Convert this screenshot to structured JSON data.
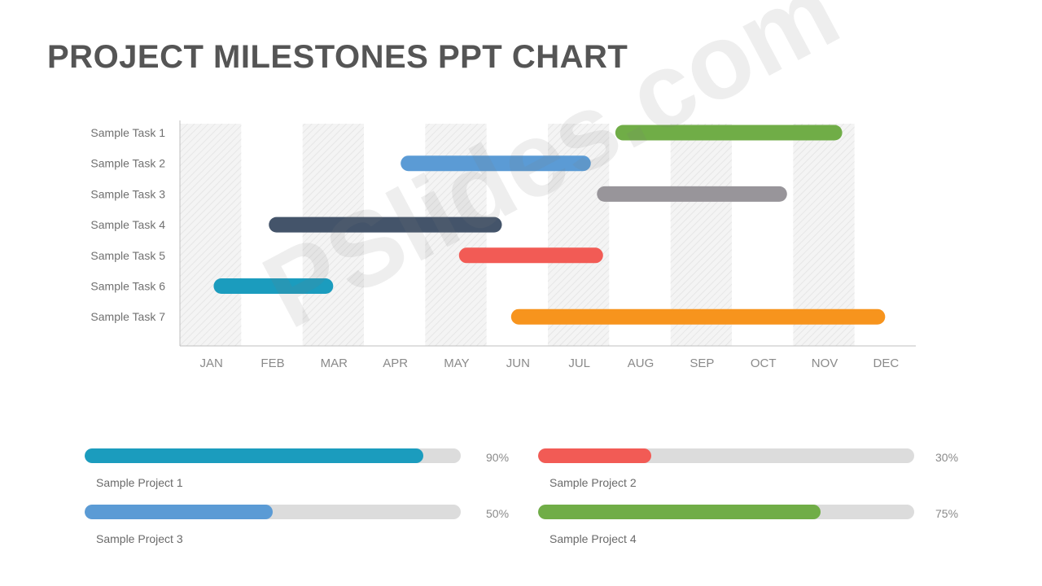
{
  "title": "PROJECT MILESTONES PPT CHART",
  "watermark": "PSlides.com",
  "chart_data": {
    "type": "gantt",
    "title": "",
    "months": [
      "JAN",
      "FEB",
      "MAR",
      "APR",
      "MAY",
      "JUN",
      "JUL",
      "AUG",
      "SEP",
      "OCT",
      "NOV",
      "DEC"
    ],
    "tasks": [
      {
        "label": "Sample Task 1",
        "start": 7.1,
        "end": 10.8,
        "color": "#70AD47"
      },
      {
        "label": "Sample Task 2",
        "start": 3.6,
        "end": 6.7,
        "color": "#5B9BD5"
      },
      {
        "label": "Sample Task 3",
        "start": 6.8,
        "end": 9.9,
        "color": "#98959A"
      },
      {
        "label": "Sample Task 4",
        "start": 1.45,
        "end": 5.25,
        "color": "#44546A"
      },
      {
        "label": "Sample Task 5",
        "start": 4.55,
        "end": 6.9,
        "color": "#F25B55"
      },
      {
        "label": "Sample Task 6",
        "start": 0.55,
        "end": 2.5,
        "color": "#1B9CBE"
      },
      {
        "label": "Sample Task 7",
        "start": 5.4,
        "end": 11.5,
        "color": "#F7941D"
      }
    ]
  },
  "progress": [
    {
      "label": "Sample Project 1",
      "percent_text": "90%",
      "value": 90,
      "color": "#1B9CBE"
    },
    {
      "label": "Sample Project 2",
      "percent_text": "30%",
      "value": 30,
      "color": "#F25B55"
    },
    {
      "label": "Sample Project 3",
      "percent_text": "50%",
      "value": 50,
      "color": "#5B9BD5"
    },
    {
      "label": "Sample Project 4",
      "percent_text": "75%",
      "value": 75,
      "color": "#70AD47"
    }
  ]
}
